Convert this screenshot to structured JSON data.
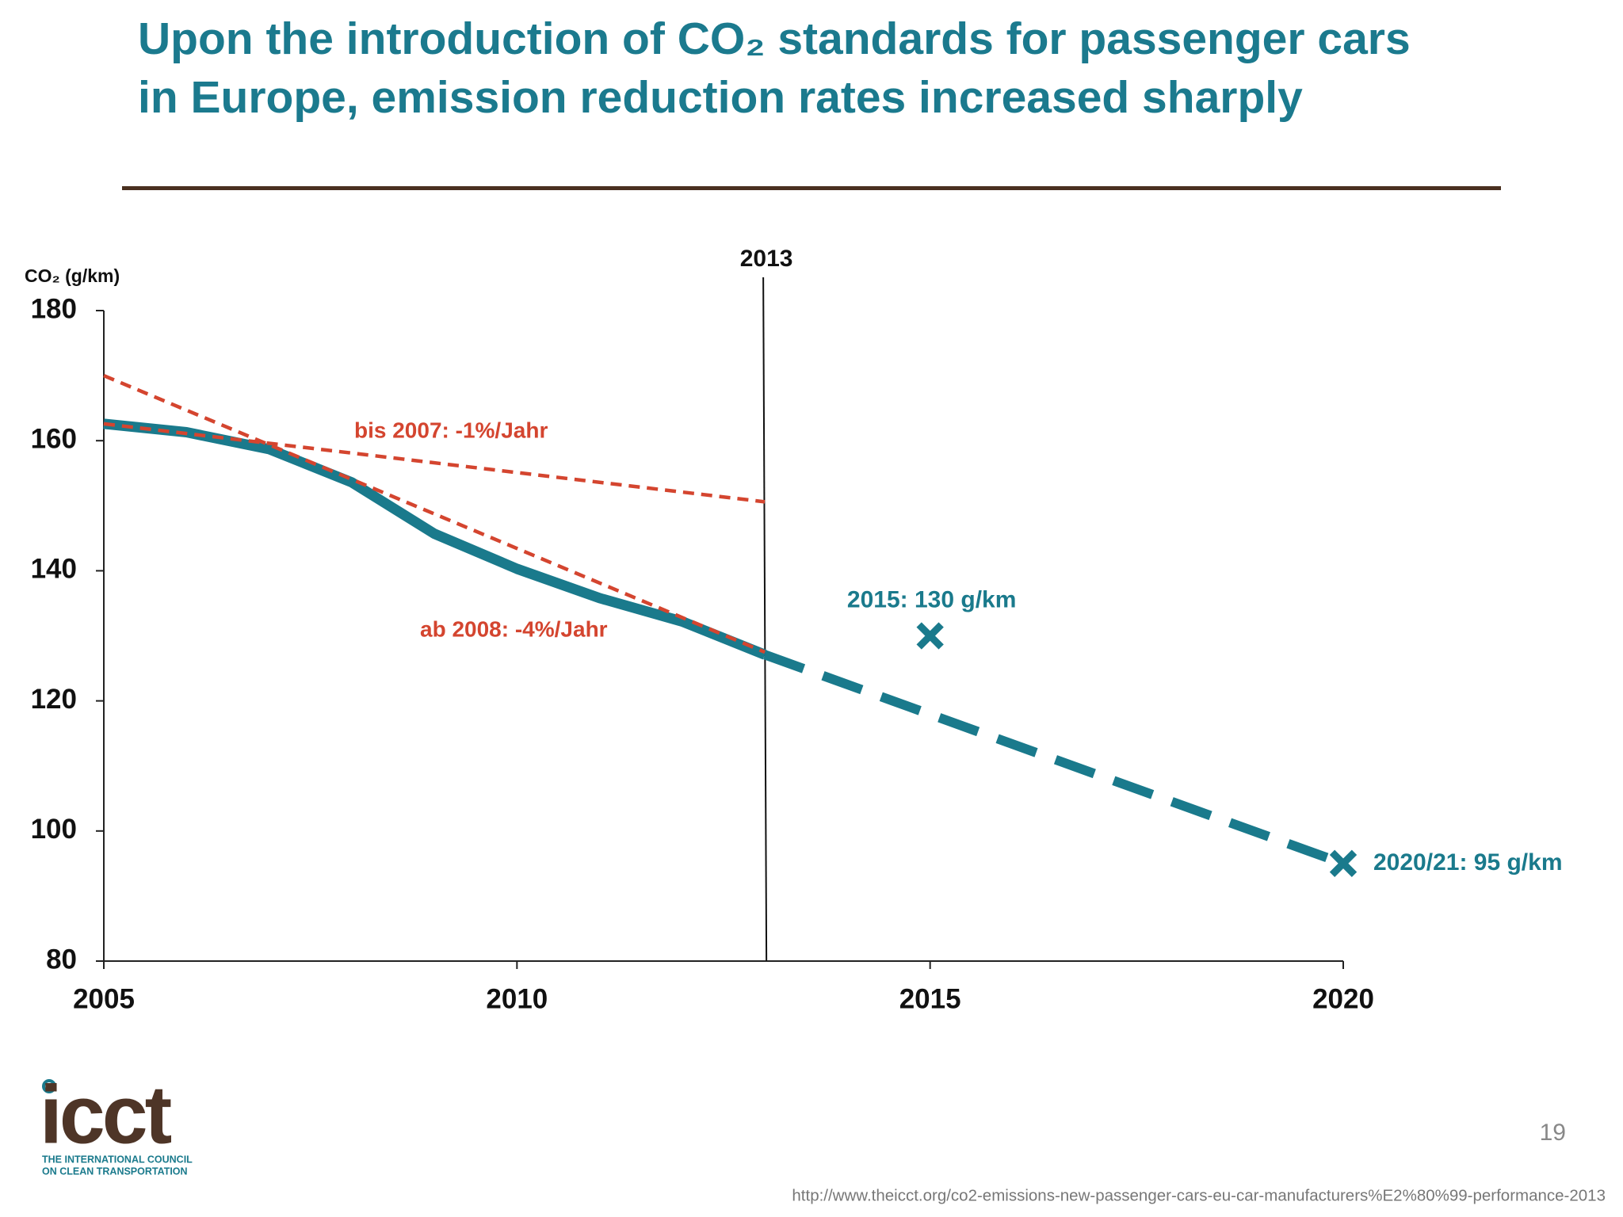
{
  "chart_data": {
    "type": "line",
    "title": "Upon the introduction of CO₂ standards for passenger cars in Europe, emission reduction rates increased sharply",
    "ylabel": "CO₂ (g/km)",
    "xlim": [
      2005,
      2020
    ],
    "xticks": [
      2005,
      2010,
      2015,
      2020
    ],
    "ylim": [
      80,
      180
    ],
    "yticks": [
      80,
      100,
      120,
      140,
      160,
      180
    ],
    "grid": false,
    "vline": 2013,
    "series": [
      {
        "color": "#1a7a8c",
        "style": "solid",
        "x": [
          2005,
          2006,
          2007,
          2008,
          2009,
          2010,
          2011,
          2012,
          2013
        ],
        "values": [
          162.6,
          161.3,
          158.7,
          153.6,
          145.7,
          140.3,
          135.8,
          132.2,
          127.1
        ]
      },
      {
        "color": "#1a7a8c",
        "style": "dashed",
        "x": [
          2013,
          2020
        ],
        "values": [
          127.1,
          95
        ]
      },
      {
        "color": "#d4452f",
        "style": "dotted",
        "x": [
          2005,
          2013
        ],
        "values": [
          162.6,
          150.6
        ]
      },
      {
        "color": "#d4452f",
        "style": "dotted",
        "x": [
          2005,
          2013
        ],
        "values": [
          170,
          127.5
        ]
      }
    ],
    "markers": {
      "color": "#1a7a8c",
      "x": [
        2015,
        2020
      ],
      "values": [
        130,
        95
      ],
      "labels": [
        "2015: 130 g/km",
        "2020/21: 95 g/km"
      ]
    },
    "annotations": [
      "bis 2007: -1%/Jahr",
      "ab 2008: -4%/Jahr"
    ]
  },
  "slide": {
    "logo": "icct",
    "logo_subtitle": [
      "THE INTERNATIONAL COUNCIL",
      "ON CLEAN TRANSPORTATION"
    ],
    "page_number": "19",
    "source": "http://www.theicct.org/co2-emissions-new-passenger-cars-eu-car-manufacturers%E2%80%99-performance-2013"
  }
}
